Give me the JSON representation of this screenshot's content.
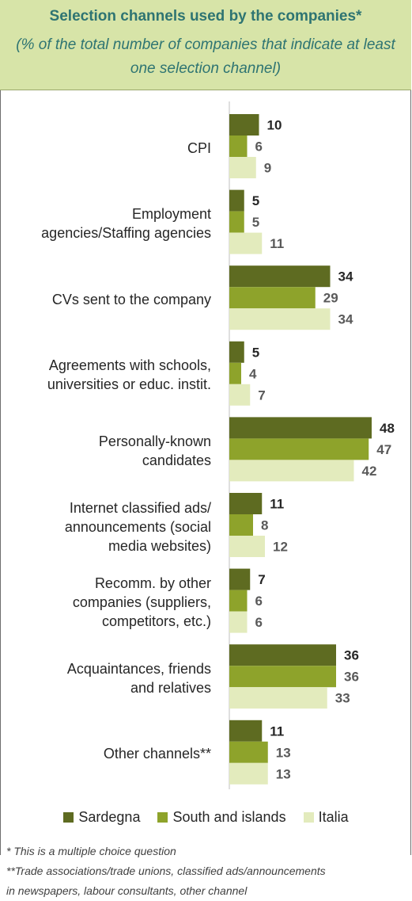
{
  "title": "Selection channels used by the companies*",
  "subtitle": "(% of the total number of companies that indicate at least one selection channel)",
  "chart_data": {
    "type": "bar",
    "orientation": "horizontal",
    "categories": [
      "CPI",
      "Employment agencies/Staffing agencies",
      "CVs sent to the company",
      "Agreements with schools, universities or educ. instit.",
      "Personally-known candidates",
      "Internet classified ads/ announcements (social media websites)",
      "Recomm. by other companies (suppliers, competitors, etc.)",
      "Acquaintances, friends and relatives",
      "Other channels**"
    ],
    "category_lines": [
      [
        "CPI"
      ],
      [
        "Employment",
        "agencies/Staffing agencies"
      ],
      [
        "CVs sent to the company"
      ],
      [
        "Agreements with schools,",
        "universities or educ. instit."
      ],
      [
        "Personally-known",
        "candidates"
      ],
      [
        "Internet classified ads/",
        "announcements (social",
        "media websites)"
      ],
      [
        "Recomm. by other",
        "companies (suppliers,",
        "competitors, etc.)"
      ],
      [
        "Acquaintances, friends",
        "and relatives"
      ],
      [
        "Other channels**"
      ]
    ],
    "series": [
      {
        "name": "Sardegna",
        "color": "#5e6b21",
        "label_color": "#262626",
        "values": [
          10,
          5,
          34,
          5,
          48,
          11,
          7,
          36,
          11
        ]
      },
      {
        "name": "South and islands",
        "color": "#8ea32b",
        "label_color": "#595959",
        "values": [
          6,
          5,
          29,
          4,
          47,
          8,
          6,
          36,
          13
        ]
      },
      {
        "name": "Italia",
        "color": "#e3ebbd",
        "label_color": "#595959",
        "values": [
          9,
          11,
          34,
          7,
          42,
          12,
          6,
          33,
          13
        ]
      }
    ],
    "xlim": [
      0,
      48
    ],
    "legend": "bottom",
    "grid": false,
    "data_labels": true
  },
  "notes": [
    "* This is a multiple choice question",
    "**Trade associations/trade unions, classified ads/announcements",
    "in newspapers, labour consultants, other channel"
  ]
}
